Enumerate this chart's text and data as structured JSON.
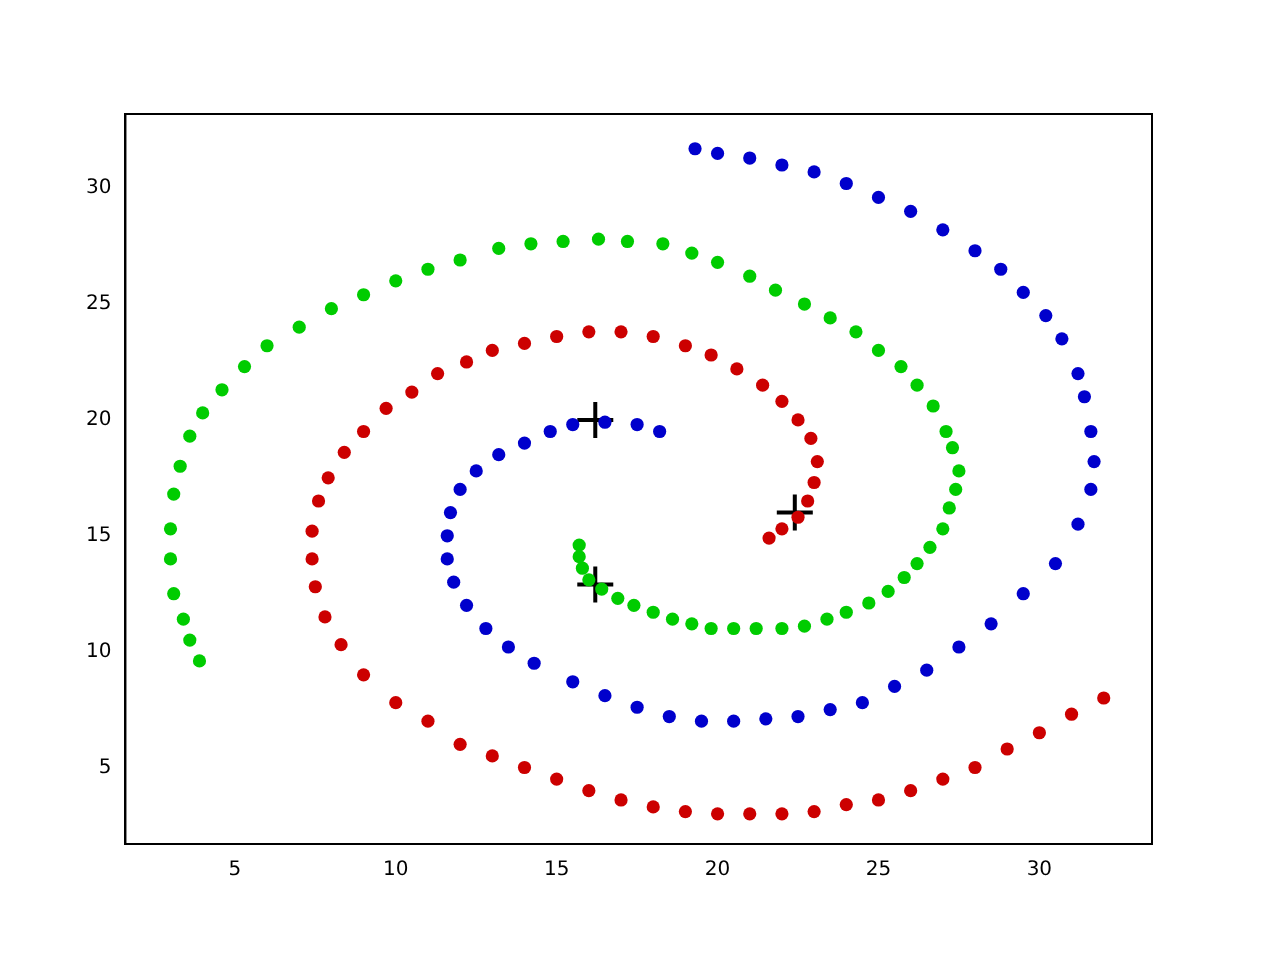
{
  "chart_data": {
    "type": "scatter",
    "xlim": [
      1.6,
      33.5
    ],
    "ylim": [
      1.7,
      33.2
    ],
    "xticks": [
      5,
      10,
      15,
      20,
      25,
      30
    ],
    "yticks": [
      5,
      10,
      15,
      20,
      25,
      30
    ],
    "grid": false,
    "legend": false,
    "marker": "circle",
    "series": [
      {
        "color": "#0000cc",
        "x": [
          18.2,
          17.5,
          16.5,
          15.5,
          14.8,
          14,
          13.2,
          12.5,
          12,
          11.7,
          11.6,
          11.6,
          11.8,
          12.2,
          12.8,
          13.5,
          14.3,
          15.5,
          16.5,
          17.5,
          18.5,
          19.5,
          20.5,
          21.5,
          22.5,
          23.5,
          24.5,
          25.5,
          26.5,
          27.5,
          28.5,
          29.5,
          30.5,
          31.2,
          31.6,
          31.7,
          31.6,
          31.4,
          31.2,
          30.7,
          30.2,
          29.5,
          28.8,
          28,
          27,
          26,
          25,
          24,
          23,
          22,
          21,
          20,
          19.3
        ],
        "values": [
          19.5,
          19.8,
          19.9,
          19.8,
          19.5,
          19,
          18.5,
          17.8,
          17,
          16,
          15,
          14,
          13,
          12,
          11,
          10.2,
          9.5,
          8.7,
          8.1,
          7.6,
          7.2,
          7,
          7,
          7.1,
          7.2,
          7.5,
          7.8,
          8.5,
          9.2,
          10.2,
          11.2,
          12.5,
          13.8,
          15.5,
          17,
          18.2,
          19.5,
          21,
          22,
          23.5,
          24.5,
          25.5,
          26.5,
          27.3,
          28.2,
          29,
          29.6,
          30.2,
          30.7,
          31,
          31.3,
          31.5,
          31.7
        ]
      },
      {
        "color": "#cc0000",
        "x": [
          21.6,
          22,
          22.5,
          22.8,
          23,
          23.1,
          22.9,
          22.5,
          22,
          21.4,
          20.6,
          19.8,
          19,
          18,
          17,
          16,
          15,
          14,
          13,
          12.2,
          11.3,
          10.5,
          9.7,
          9,
          8.4,
          7.9,
          7.6,
          7.4,
          7.4,
          7.5,
          7.8,
          8.3,
          9,
          10,
          11,
          12,
          13,
          14,
          15,
          16,
          17,
          18,
          19,
          20,
          21,
          22,
          23,
          24,
          25,
          26,
          27,
          28,
          29,
          30,
          31,
          32
        ],
        "values": [
          14.9,
          15.3,
          15.8,
          16.5,
          17.3,
          18.2,
          19.2,
          20,
          20.8,
          21.5,
          22.2,
          22.8,
          23.2,
          23.6,
          23.8,
          23.8,
          23.6,
          23.3,
          23,
          22.5,
          22,
          21.2,
          20.5,
          19.5,
          18.6,
          17.5,
          16.5,
          15.2,
          14,
          12.8,
          11.5,
          10.3,
          9,
          7.8,
          7,
          6,
          5.5,
          5,
          4.5,
          4,
          3.6,
          3.3,
          3.1,
          3,
          3,
          3,
          3.1,
          3.4,
          3.6,
          4,
          4.5,
          5,
          5.8,
          6.5,
          7.3,
          8
        ]
      },
      {
        "color": "#00cc00",
        "x": [
          15.7,
          15.7,
          15.8,
          16,
          16.4,
          16.9,
          17.4,
          18,
          18.6,
          19.2,
          19.8,
          20.5,
          21.2,
          22,
          22.7,
          23.4,
          24,
          24.7,
          25.3,
          25.8,
          26.2,
          26.6,
          27,
          27.2,
          27.4,
          27.5,
          27.3,
          27.1,
          26.7,
          26.2,
          25.7,
          25,
          24.3,
          23.5,
          22.7,
          21.8,
          21,
          20,
          19.2,
          18.3,
          17.2,
          16.3,
          15.2,
          14.2,
          13.2,
          12,
          11,
          10,
          9,
          8,
          7,
          6,
          5.3,
          4.6,
          4,
          3.6,
          3.3,
          3.1,
          3,
          3,
          3.1,
          3.4,
          3.6,
          3.9
        ],
        "values": [
          14.6,
          14.1,
          13.6,
          13.1,
          12.7,
          12.3,
          12,
          11.7,
          11.4,
          11.2,
          11,
          11,
          11,
          11,
          11.1,
          11.4,
          11.7,
          12.1,
          12.6,
          13.2,
          13.8,
          14.5,
          15.3,
          16.2,
          17,
          17.8,
          18.8,
          19.5,
          20.6,
          21.5,
          22.3,
          23,
          23.8,
          24.4,
          25,
          25.6,
          26.2,
          26.8,
          27.2,
          27.6,
          27.7,
          27.8,
          27.7,
          27.6,
          27.4,
          26.9,
          26.5,
          26,
          25.4,
          24.8,
          24,
          23.2,
          22.3,
          21.3,
          20.3,
          19.3,
          18,
          16.8,
          15.3,
          14,
          12.5,
          11.4,
          10.5,
          9.6
        ]
      },
      {
        "color": "#000000",
        "marker": "cross",
        "x": [
          16.2,
          22.4,
          16.2
        ],
        "values": [
          20.0,
          16.0,
          12.9
        ]
      }
    ]
  }
}
